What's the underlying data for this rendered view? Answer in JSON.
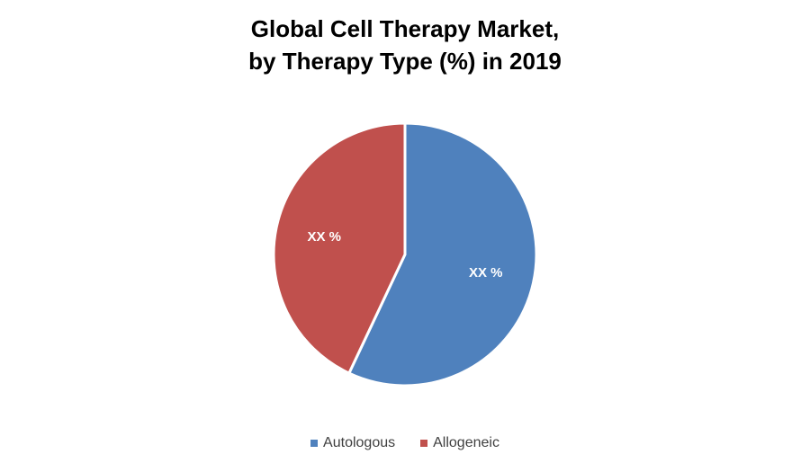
{
  "chart_data": {
    "type": "pie",
    "title": "Global Cell Therapy Market,",
    "subtitle": "by Therapy Type (%) in 2019",
    "slices": [
      {
        "name": "Autologous",
        "value": 57,
        "label": "XX %",
        "color": "#4F81BD"
      },
      {
        "name": "Allogeneic",
        "value": 43,
        "label": "XX %",
        "color": "#C0504D"
      }
    ],
    "legend_position": "bottom"
  }
}
